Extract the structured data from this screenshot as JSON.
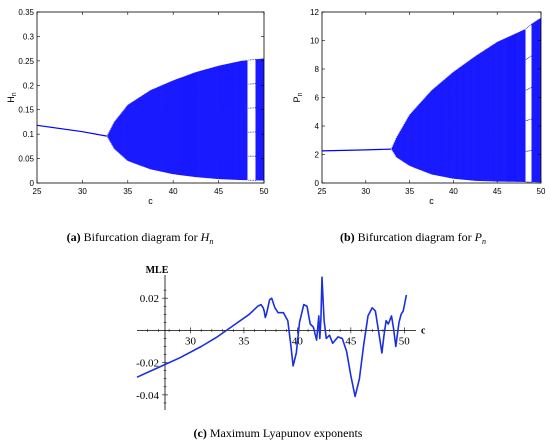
{
  "colors": {
    "series": "#0000ff",
    "curve": "#1a2fe0",
    "axis": "#000000"
  },
  "captions": {
    "a": {
      "tag": "(a)",
      "text": "Bifurcation diagram for ",
      "var": "H",
      "sub": "n"
    },
    "b": {
      "tag": "(b)",
      "text": "Bifurcation diagram for ",
      "var": "P",
      "sub": "n"
    },
    "c": {
      "tag": "(c)",
      "text": "Maximum Lyapunov exponents"
    }
  },
  "chart_data": [
    {
      "id": "a",
      "type": "scatter",
      "xlabel": "c",
      "ylabel": "H",
      "ylabel_sub": "n",
      "xlim": [
        25,
        50
      ],
      "ylim": [
        0,
        0.35
      ],
      "grid": false,
      "xticks": [
        25,
        30,
        35,
        40,
        45,
        50
      ],
      "yticks": [
        0,
        0.05,
        0.1,
        0.15,
        0.2,
        0.25,
        0.3,
        0.35
      ],
      "fixed_point": [
        [
          25,
          0.118
        ],
        [
          30,
          0.105
        ],
        [
          32.7,
          0.096
        ]
      ],
      "chaotic_upper": [
        [
          32.7,
          0.096
        ],
        [
          33.5,
          0.125
        ],
        [
          35,
          0.16
        ],
        [
          37.5,
          0.19
        ],
        [
          40,
          0.21
        ],
        [
          42.5,
          0.227
        ],
        [
          45,
          0.24
        ],
        [
          47.5,
          0.25
        ],
        [
          50,
          0.255
        ]
      ],
      "chaotic_lower": [
        [
          32.7,
          0.096
        ],
        [
          33.5,
          0.07
        ],
        [
          35,
          0.045
        ],
        [
          37.5,
          0.028
        ],
        [
          40,
          0.018
        ],
        [
          42.5,
          0.012
        ],
        [
          45,
          0.008
        ],
        [
          47.5,
          0.006
        ],
        [
          50,
          0.005
        ]
      ],
      "window": [
        48.2,
        49.1
      ]
    },
    {
      "id": "b",
      "type": "scatter",
      "xlabel": "c",
      "ylabel": "P",
      "ylabel_sub": "n",
      "xlim": [
        25,
        50
      ],
      "ylim": [
        0,
        12
      ],
      "grid": false,
      "xticks": [
        25,
        30,
        35,
        40,
        45,
        50
      ],
      "yticks": [
        0,
        2,
        4,
        6,
        8,
        10,
        12
      ],
      "fixed_point": [
        [
          25,
          2.25
        ],
        [
          30,
          2.32
        ],
        [
          32.9,
          2.38
        ]
      ],
      "chaotic_upper": [
        [
          32.9,
          2.38
        ],
        [
          33.5,
          3.2
        ],
        [
          35,
          4.8
        ],
        [
          37.5,
          6.5
        ],
        [
          40,
          7.8
        ],
        [
          42.5,
          8.9
        ],
        [
          45,
          9.9
        ],
        [
          47.5,
          10.6
        ],
        [
          48.2,
          10.8
        ],
        [
          49,
          11.2
        ],
        [
          50,
          11.6
        ]
      ],
      "chaotic_lower": [
        [
          32.9,
          2.38
        ],
        [
          33.5,
          1.8
        ],
        [
          35,
          1.2
        ],
        [
          37.5,
          0.6
        ],
        [
          40,
          0.3
        ],
        [
          42.5,
          0.15
        ],
        [
          45,
          0.1
        ],
        [
          47.5,
          0.08
        ],
        [
          50,
          0.05
        ]
      ],
      "window": [
        48.2,
        48.9
      ]
    },
    {
      "id": "c",
      "type": "line",
      "xlabel": "c",
      "ylabel": "MLE",
      "xlim": [
        25,
        51
      ],
      "ylim": [
        -0.05,
        0.035
      ],
      "grid": false,
      "xticks": [
        30,
        35,
        40,
        45,
        50
      ],
      "yticks": [
        -0.04,
        -0.02,
        0.02
      ],
      "ytick_labels": [
        "-0.04",
        "-0.02",
        "0.02"
      ],
      "points": [
        [
          25,
          -0.029
        ],
        [
          27,
          -0.023
        ],
        [
          29,
          -0.017
        ],
        [
          31,
          -0.01
        ],
        [
          32.5,
          -0.004
        ],
        [
          34,
          0.003
        ],
        [
          35.5,
          0.01
        ],
        [
          36.3,
          0.015
        ],
        [
          36.6,
          0.016
        ],
        [
          36.8,
          0.014
        ],
        [
          36.9,
          0.012
        ],
        [
          37.0,
          0.008
        ],
        [
          37.1,
          0.01
        ],
        [
          37.4,
          0.019
        ],
        [
          37.6,
          0.02
        ],
        [
          37.9,
          0.014
        ],
        [
          38.2,
          0.011
        ],
        [
          38.7,
          0.011
        ],
        [
          39.1,
          0.006
        ],
        [
          39.4,
          -0.01
        ],
        [
          39.6,
          -0.022
        ],
        [
          39.9,
          -0.014
        ],
        [
          40.2,
          0.005
        ],
        [
          40.6,
          0.016
        ],
        [
          40.9,
          0.015
        ],
        [
          41.2,
          0.004
        ],
        [
          41.5,
          0.002
        ],
        [
          41.8,
          -0.006
        ],
        [
          42.0,
          0.009
        ],
        [
          42.1,
          -0.005
        ],
        [
          42.2,
          0.007
        ],
        [
          42.3,
          0.033
        ],
        [
          42.5,
          0.006
        ],
        [
          42.7,
          -0.005
        ],
        [
          43.0,
          -0.003
        ],
        [
          43.3,
          -0.008
        ],
        [
          43.8,
          -0.004
        ],
        [
          44.2,
          -0.005
        ],
        [
          44.6,
          -0.013
        ],
        [
          45.0,
          -0.028
        ],
        [
          45.4,
          -0.041
        ],
        [
          45.8,
          -0.03
        ],
        [
          46.2,
          -0.009
        ],
        [
          46.6,
          0.009
        ],
        [
          47.0,
          0.014
        ],
        [
          47.3,
          0.012
        ],
        [
          47.7,
          -0.005
        ],
        [
          47.9,
          -0.014
        ],
        [
          48.1,
          -0.003
        ],
        [
          48.3,
          0.006
        ],
        [
          48.5,
          0.004
        ],
        [
          48.8,
          0.009
        ],
        [
          49.0,
          0.001
        ],
        [
          49.2,
          -0.01
        ],
        [
          49.5,
          0.005
        ],
        [
          49.7,
          0.01
        ],
        [
          49.9,
          0.012
        ],
        [
          50.2,
          0.022
        ]
      ]
    }
  ]
}
